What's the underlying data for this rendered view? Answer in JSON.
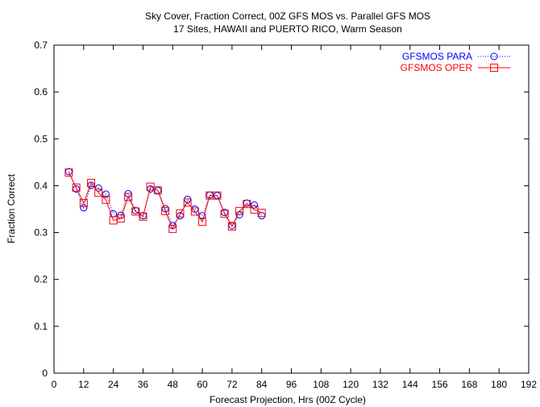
{
  "chart_data": {
    "type": "line",
    "title": "Sky Cover, Fraction Correct, 00Z GFS MOS vs. Parallel GFS MOS",
    "subtitle": "17 Sites, HAWAII and PUERTO RICO, Warm Season",
    "xlabel": "Forecast Projection, Hrs (00Z Cycle)",
    "ylabel": "Fraction Correct",
    "xlim": [
      0,
      192
    ],
    "ylim": [
      0,
      0.7
    ],
    "xticks": [
      0,
      12,
      24,
      36,
      48,
      60,
      72,
      84,
      96,
      108,
      120,
      132,
      144,
      156,
      168,
      180,
      192
    ],
    "yticks": [
      0,
      0.1,
      0.2,
      0.3,
      0.4,
      0.5,
      0.6,
      0.7
    ],
    "grid": false,
    "legend_position": "top-right",
    "x": [
      6,
      9,
      12,
      15,
      18,
      21,
      24,
      27,
      30,
      33,
      36,
      39,
      42,
      45,
      48,
      51,
      54,
      57,
      60,
      63,
      66,
      69,
      72,
      75,
      78,
      81,
      84
    ],
    "series": [
      {
        "name": "GFSMOS PARA",
        "color": "#0000ff",
        "marker": "circle",
        "line_style": "dotted",
        "values": [
          0.43,
          0.393,
          0.353,
          0.401,
          0.395,
          0.382,
          0.34,
          0.337,
          0.383,
          0.347,
          0.336,
          0.393,
          0.39,
          0.351,
          0.315,
          0.336,
          0.371,
          0.35,
          0.336,
          0.38,
          0.379,
          0.343,
          0.315,
          0.338,
          0.363,
          0.359,
          0.336
        ]
      },
      {
        "name": "GFSMOS OPER",
        "color": "#ff0000",
        "marker": "square",
        "line_style": "solid",
        "values": [
          0.428,
          0.396,
          0.363,
          0.406,
          0.385,
          0.37,
          0.326,
          0.33,
          0.376,
          0.345,
          0.334,
          0.398,
          0.39,
          0.346,
          0.308,
          0.341,
          0.364,
          0.345,
          0.323,
          0.379,
          0.379,
          0.34,
          0.313,
          0.346,
          0.361,
          0.349,
          0.342
        ]
      }
    ]
  }
}
